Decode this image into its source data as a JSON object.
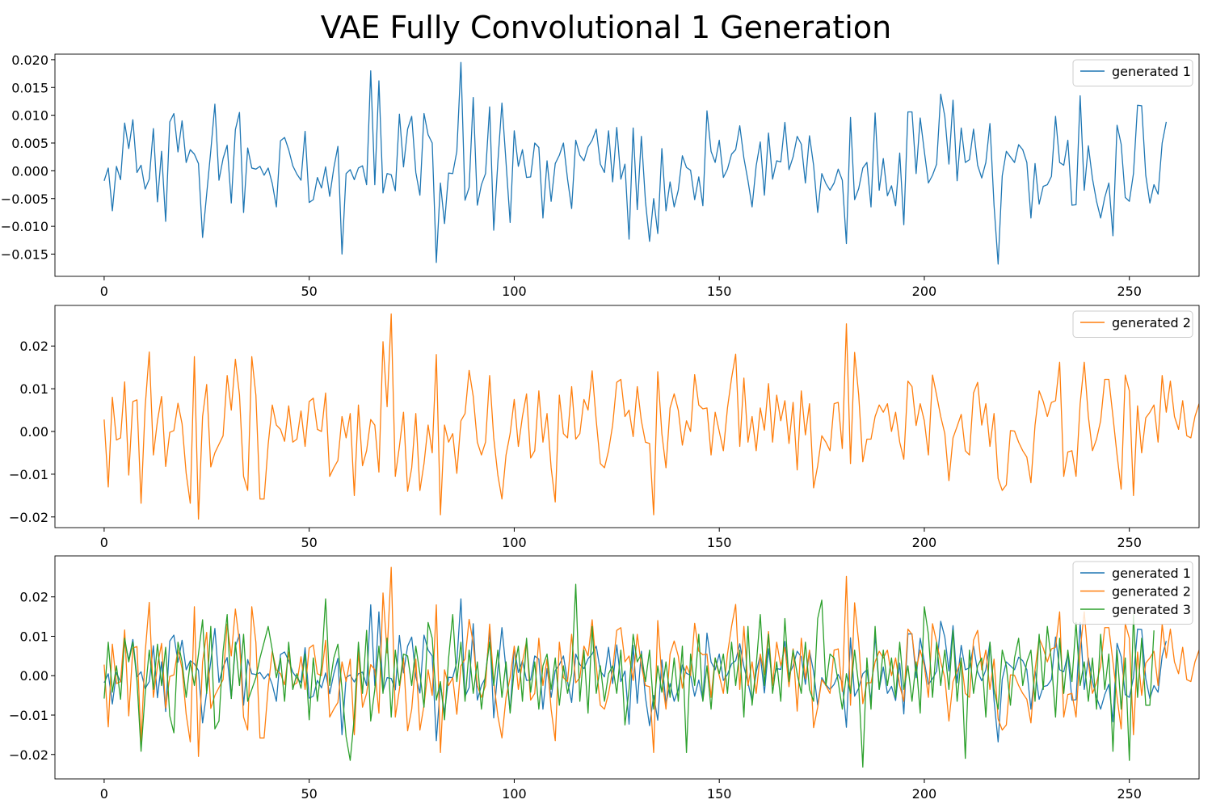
{
  "title": "VAE Fully Convolutional 1 Generation",
  "colors": {
    "series1": "#1f77b4",
    "series2": "#ff7f0e",
    "series3": "#2ca02c"
  },
  "chart_data": [
    {
      "type": "line",
      "xlim": [
        -12,
        267
      ],
      "ylim": [
        -0.019,
        0.021
      ],
      "xticks": [
        0,
        50,
        100,
        150,
        200,
        250
      ],
      "xtick_labels": [
        "0",
        "50",
        "100",
        "150",
        "200",
        "250"
      ],
      "yticks": [
        -0.015,
        -0.01,
        -0.005,
        0.0,
        0.005,
        0.01,
        0.015,
        0.02
      ],
      "ytick_labels": [
        "−0.015",
        "−0.010",
        "−0.005",
        "0.000",
        "0.005",
        "0.010",
        "0.015",
        "0.020"
      ],
      "legend": "top-right",
      "series": [
        {
          "name": "generated 1",
          "color": "#1f77b4",
          "x_start": 0,
          "x_step": 1,
          "values": [
            -0.0018,
            0.0005,
            -0.0072,
            0.0008,
            -0.0016,
            0.0086,
            0.004,
            0.0092,
            -0.0003,
            0.001,
            -0.0033,
            -0.0015,
            0.0076,
            -0.0056,
            0.0035,
            -0.0091,
            0.0088,
            0.0103,
            0.0034,
            0.009,
            0.0015,
            0.0038,
            0.003,
            0.0013,
            -0.012,
            -0.0042,
            0.0036,
            0.012,
            -0.0017,
            0.0022,
            0.0046,
            -0.0058,
            0.0074,
            0.0105,
            -0.0075,
            0.0041,
            0.0005,
            0.0003,
            0.0008,
            -0.0008,
            0.0005,
            -0.0023,
            -0.0065,
            0.0054,
            0.006,
            0.0038,
            0.0009,
            -0.0006,
            -0.0017,
            0.0071,
            -0.0057,
            -0.0052,
            -0.0012,
            -0.0031,
            0.0007,
            -0.0046,
            0.0005,
            0.0044,
            -0.015,
            -0.0005,
            0.0002,
            -0.0016,
            0.0005,
            0.0009,
            -0.0025,
            0.018,
            -0.0025,
            0.0162,
            -0.004,
            -0.0005,
            -0.0007,
            -0.0036,
            0.0102,
            0.0007,
            0.0075,
            0.0098,
            -0.0003,
            -0.0044,
            0.0103,
            0.0065,
            0.005,
            -0.0165,
            -0.0022,
            -0.0095,
            -0.0004,
            -0.0005,
            0.0035,
            0.0195,
            -0.0053,
            -0.003,
            0.0132,
            -0.0062,
            -0.0025,
            -0.0005,
            0.0115,
            -0.0107,
            0.0015,
            0.0122,
            0.0015,
            -0.0093,
            0.0072,
            0.0008,
            0.0038,
            -0.0012,
            -0.0011,
            0.005,
            0.0042,
            -0.0085,
            0.0018,
            -0.0055,
            0.0013,
            0.0028,
            0.005,
            -0.0015,
            -0.0068,
            0.0055,
            0.0028,
            0.0018,
            0.0043,
            0.0055,
            0.0075,
            0.0012,
            -0.0003,
            0.0072,
            -0.002,
            0.0078,
            -0.0015,
            0.0012,
            -0.0123,
            0.0077,
            -0.007,
            0.0062,
            -0.0055,
            -0.0127,
            -0.005,
            -0.0113,
            0.004,
            -0.0072,
            -0.002,
            -0.0065,
            -0.0035,
            0.0027,
            0.0006,
            0.0001,
            -0.0052,
            -0.0011,
            -0.0063,
            0.0108,
            0.0035,
            0.0015,
            0.0055,
            -0.0012,
            0.0003,
            0.003,
            0.0038,
            0.0081,
            0.0023,
            -0.0018,
            -0.0065,
            0.0009,
            0.0052,
            -0.0044,
            0.0068,
            -0.0015,
            0.0018,
            0.0016,
            0.0087,
            0.0002,
            0.0025,
            0.0062,
            0.0048,
            -0.0022,
            0.0063,
            0.001,
            -0.0075,
            -0.0005,
            -0.0023,
            -0.0035,
            -0.0022,
            0.0003,
            -0.0017,
            -0.0131,
            0.0096,
            -0.0052,
            -0.0032,
            0.0005,
            0.0015,
            -0.0065,
            0.0104,
            -0.0035,
            0.0022,
            -0.0045,
            -0.0027,
            -0.0063,
            0.0032,
            -0.0097,
            0.0106,
            0.0106,
            -0.0005,
            0.0095,
            0.0035,
            -0.0022,
            -0.0008,
            0.0012,
            0.0138,
            0.0098,
            0.0012,
            0.0127,
            -0.0018,
            0.0077,
            0.0015,
            0.002,
            0.0075,
            0.001,
            -0.0013,
            0.0015,
            0.0085,
            -0.0062,
            -0.0168,
            -0.0009,
            0.0035,
            0.0025,
            0.0015,
            0.0047,
            0.0038,
            0.0015,
            -0.0085,
            0.0013,
            -0.006,
            -0.0028,
            -0.0025,
            -0.001,
            0.0098,
            0.0015,
            0.001,
            0.0055,
            -0.0062,
            -0.0061,
            0.0135,
            -0.0035,
            0.0045,
            -0.0014,
            -0.0055,
            -0.0085,
            -0.0048,
            -0.0022,
            -0.0117,
            0.0082,
            0.0048,
            -0.0048,
            -0.0055,
            -0.0005,
            0.0118,
            0.0117,
            -0.0008,
            -0.0058,
            -0.0025,
            -0.0042,
            0.005,
            0.0088
          ]
        }
      ]
    },
    {
      "type": "line",
      "xlim": [
        -12,
        267
      ],
      "ylim": [
        -0.0225,
        0.0295
      ],
      "xticks": [
        0,
        50,
        100,
        150,
        200,
        250
      ],
      "xtick_labels": [
        "0",
        "50",
        "100",
        "150",
        "200",
        "250"
      ],
      "yticks": [
        -0.02,
        -0.01,
        0.0,
        0.01,
        0.02
      ],
      "ytick_labels": [
        "−0.02",
        "−0.01",
        "0.00",
        "0.01",
        "0.02"
      ],
      "legend": "top-right",
      "series": [
        {
          "name": "generated 2",
          "color": "#ff7f0e",
          "x_start": 0,
          "x_step": 1,
          "values": [
            0.0028,
            -0.013,
            0.008,
            -0.002,
            -0.0015,
            0.0116,
            -0.0102,
            0.007,
            0.0074,
            -0.0168,
            0.0058,
            0.0186,
            -0.0055,
            0.0025,
            0.0082,
            -0.0082,
            -0.0002,
            0.0002,
            0.0066,
            0.0018,
            -0.0098,
            -0.0168,
            0.0175,
            -0.0205,
            0.0035,
            0.011,
            -0.0083,
            -0.005,
            -0.003,
            -0.001,
            0.0131,
            0.005,
            0.0169,
            0.0085,
            -0.0105,
            -0.0138,
            0.0175,
            0.0085,
            -0.0158,
            -0.0158,
            -0.003,
            0.0062,
            0.0015,
            0.0005,
            -0.0023,
            0.006,
            -0.0025,
            -0.0018,
            0.0048,
            -0.0035,
            0.007,
            0.0078,
            0.0005,
            0.0,
            0.009,
            -0.0105,
            -0.0085,
            -0.0068,
            0.0035,
            -0.0015,
            0.0042,
            -0.015,
            0.0062,
            -0.008,
            -0.0045,
            0.0028,
            0.0015,
            -0.0095,
            0.021,
            0.0058,
            0.0275,
            -0.0105,
            -0.0035,
            0.0045,
            -0.014,
            -0.0085,
            0.0042,
            -0.0138,
            -0.0075,
            0.0015,
            -0.005,
            0.018,
            -0.0195,
            0.0015,
            -0.0025,
            -0.0005,
            -0.0098,
            0.0025,
            0.0042,
            0.0143,
            0.0082,
            -0.0025,
            -0.0055,
            -0.0025,
            0.0131,
            -0.0015,
            -0.0102,
            -0.0158,
            -0.0055,
            -0.0005,
            0.0075,
            -0.0035,
            0.0035,
            0.0088,
            -0.0062,
            -0.0045,
            0.0095,
            -0.0025,
            0.0042,
            -0.0085,
            -0.0165,
            0.0085,
            -0.0005,
            -0.0015,
            0.0105,
            -0.0018,
            -0.0005,
            0.0075,
            0.005,
            0.0142,
            0.0025,
            -0.0075,
            -0.0085,
            -0.0045,
            0.0015,
            0.0115,
            0.0122,
            0.0035,
            0.005,
            -0.0012,
            0.0105,
            0.0025,
            -0.0025,
            -0.0028,
            -0.0195,
            0.014,
            -0.0005,
            -0.0085,
            0.0055,
            0.0088,
            0.005,
            -0.0032,
            0.0025,
            0.0,
            0.0133,
            0.0062,
            0.0053,
            0.0055,
            -0.0055,
            0.0045,
            0.0,
            -0.0045,
            0.0055,
            0.0125,
            0.0181,
            -0.0035,
            0.0125,
            -0.0025,
            0.0035,
            -0.0045,
            0.0055,
            0.0003,
            0.0112,
            -0.0025,
            0.0085,
            0.0025,
            0.0072,
            -0.0028,
            0.0068,
            -0.009,
            0.0095,
            -0.0008,
            0.0065,
            -0.0132,
            -0.008,
            -0.001,
            -0.0025,
            -0.0045,
            0.0065,
            0.0068,
            -0.004,
            0.0252,
            -0.0075,
            0.0185,
            0.0085,
            -0.0071,
            -0.0018,
            -0.0018,
            0.0035,
            0.0062,
            0.0045,
            0.0065,
            0.0,
            0.0045,
            -0.0025,
            -0.0065,
            0.0118,
            0.0105,
            0.0014,
            0.0065,
            0.0025,
            -0.0055,
            0.0132,
            0.0085,
            0.0035,
            -0.0005,
            -0.0115,
            -0.0015,
            0.0012,
            0.004,
            -0.0045,
            -0.0055,
            0.009,
            0.0115,
            0.0015,
            0.0065,
            -0.0035,
            0.0042,
            -0.011,
            -0.0138,
            -0.0125,
            0.0002,
            0.0001,
            -0.0025,
            -0.0045,
            -0.006,
            -0.012,
            0.0015,
            0.0095,
            0.007,
            0.0035,
            0.0068,
            0.0072,
            0.0162,
            -0.0105,
            -0.0048,
            -0.0045,
            -0.0105,
            0.0065,
            0.0162,
            0.0035,
            -0.0045,
            -0.0018,
            0.0025,
            0.0122,
            0.0122,
            0.0035,
            -0.0055,
            -0.0135,
            0.0132,
            0.0095,
            -0.015,
            0.006,
            -0.005,
            0.0032,
            0.0045,
            0.0062,
            -0.0025,
            0.0131,
            0.0045,
            0.0118,
            0.0035,
            0.0005,
            0.0072,
            -0.001,
            -0.0015,
            0.0035,
            0.0065
          ]
        }
      ]
    },
    {
      "type": "line",
      "xlim": [
        -12,
        267
      ],
      "ylim": [
        -0.0262,
        0.0304
      ],
      "xticks": [
        0,
        50,
        100,
        150,
        200,
        250
      ],
      "xtick_labels": [
        "0",
        "50",
        "100",
        "150",
        "200",
        "250"
      ],
      "yticks": [
        -0.02,
        -0.01,
        0.0,
        0.01,
        0.02
      ],
      "ytick_labels": [
        "−0.02",
        "−0.01",
        "0.00",
        "0.01",
        "0.02"
      ],
      "legend": "top-right",
      "series": [
        {
          "name": "generated 1",
          "color": "#1f77b4",
          "ref": "chart0.series0"
        },
        {
          "name": "generated 2",
          "color": "#ff7f0e",
          "ref": "chart1.series0"
        },
        {
          "name": "generated 3",
          "color": "#2ca02c",
          "x_start": 0,
          "x_step": 1,
          "values": [
            -0.0058,
            0.0085,
            -0.0042,
            0.0025,
            -0.006,
            0.0095,
            0.0035,
            0.0085,
            -0.0012,
            -0.0192,
            -0.0045,
            0.0065,
            -0.0035,
            0.008,
            -0.0025,
            0.0072,
            -0.0102,
            -0.0145,
            0.0085,
            0.0035,
            -0.0055,
            0.0035,
            -0.0025,
            0.0055,
            0.0142,
            -0.0045,
            0.0125,
            -0.0135,
            -0.0115,
            0.0062,
            0.0155,
            -0.0058,
            0.0085,
            -0.0025,
            0.0105,
            -0.0065,
            -0.0035,
            -0.0005,
            0.0045,
            0.0085,
            0.0125,
            0.0065,
            -0.0005,
            0.0045,
            -0.0065,
            0.0085,
            -0.0035,
            0.0005,
            -0.0032,
            0.0055,
            -0.0112,
            0.0045,
            -0.0065,
            0.0025,
            0.0195,
            -0.0025,
            0.0045,
            0.008,
            -0.0035,
            -0.0155,
            -0.0215,
            -0.0105,
            0.0085,
            -0.0045,
            0.0115,
            -0.0115,
            -0.0035,
            0.0075,
            -0.0045,
            0.0095,
            -0.0105,
            0.0065,
            -0.0025,
            0.0055,
            0.005,
            -0.0025,
            0.0075,
            0.0005,
            -0.008,
            0.0135,
            0.0095,
            -0.0062,
            -0.0015,
            -0.0112,
            0.0045,
            0.0155,
            -0.0015,
            0.0085,
            -0.0065,
            0.0065,
            -0.0045,
            0.0035,
            -0.0085,
            0.0005,
            0.0085,
            -0.0025,
            0.0065,
            -0.0055,
            0.0035,
            -0.0095,
            0.0015,
            0.0075,
            -0.0065,
            0.0095,
            -0.0042,
            0.0035,
            -0.0085,
            0.0025,
            0.0055,
            -0.0035,
            0.0045,
            -0.0075,
            0.0025,
            -0.0045,
            0.0005,
            0.0232,
            -0.0065,
            0.0065,
            -0.0095,
            0.0125,
            -0.0045,
            0.0025,
            -0.0065,
            0.0005,
            0.0025,
            -0.0045,
            0.0065,
            -0.0125,
            -0.0035,
            0.0105,
            0.0035,
            0.0055,
            -0.0015,
            0.0065,
            -0.0085,
            0.0025,
            -0.0042,
            0.0035,
            -0.0055,
            0.0045,
            -0.0065,
            0.0075,
            -0.0195,
            0.0055,
            -0.0025,
            0.0105,
            -0.0065,
            0.0025,
            -0.0085,
            0.0045,
            0.0005,
            0.0055,
            -0.0045,
            0.0085,
            -0.0025,
            0.0065,
            -0.0105,
            0.0125,
            -0.0075,
            0.0025,
            0.0155,
            -0.0025,
            0.0105,
            -0.0045,
            0.0035,
            -0.0065,
            0.0145,
            -0.0015,
            0.0065,
            0.0005,
            -0.0045,
            0.0085,
            -0.0035,
            -0.0065,
            0.0145,
            0.0192,
            -0.0025,
            0.0055,
            0.0045,
            -0.0015,
            -0.0085,
            0.0005,
            -0.0045,
            0.0065,
            -0.0025,
            -0.0232,
            0.0045,
            -0.0085,
            0.0125,
            -0.0035,
            0.0065,
            -0.0025,
            0.0045,
            -0.0055,
            0.0085,
            -0.0035,
            0.0025,
            -0.0065,
            0.0035,
            -0.0095,
            0.0175,
            0.0105,
            -0.0055,
            0.0085,
            -0.0025,
            0.0065,
            -0.0035,
            0.0115,
            -0.0065,
            0.0045,
            -0.021,
            0.0065,
            -0.0045,
            0.0025,
            0.0045,
            -0.0105,
            0.0085,
            -0.0035,
            -0.0085,
            0.0065,
            0.0025,
            -0.0075,
            0.0045,
            0.0095,
            -0.0025,
            0.0035,
            0.0065,
            -0.0065,
            0.0105,
            -0.0035,
            0.0125,
            0.0035,
            -0.0105,
            0.0095,
            -0.0045,
            0.0065,
            -0.0015,
            0.0135,
            -0.0025,
            0.0035,
            -0.0065,
            0.0045,
            -0.0085,
            0.0105,
            -0.0035,
            0.0055,
            -0.0192,
            0.0065,
            -0.0085,
            0.0045,
            -0.0215,
            0.0155,
            -0.0055,
            0.0095,
            -0.0075,
            -0.0075,
            0.0115
          ]
        }
      ]
    }
  ]
}
